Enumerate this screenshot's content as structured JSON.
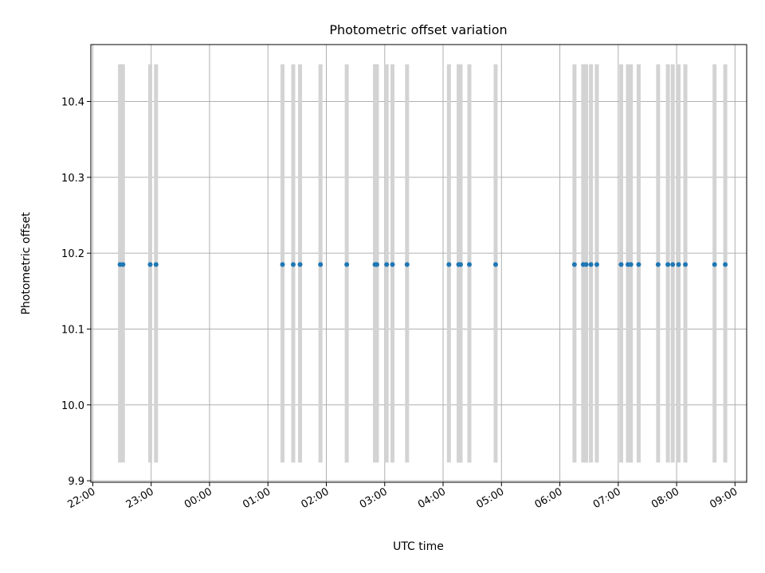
{
  "chart_data": {
    "type": "scatter",
    "title": "Photometric offset variation",
    "xlabel": "UTC time",
    "ylabel": "Photometric offset",
    "x_is_time_of_day": true,
    "xlim": [
      "21:58",
      "09:12"
    ],
    "ylim": [
      9.898,
      10.475
    ],
    "x_ticks": [
      "22:00",
      "23:00",
      "00:00",
      "01:00",
      "02:00",
      "03:00",
      "04:00",
      "05:00",
      "06:00",
      "07:00",
      "08:00",
      "09:00"
    ],
    "x_tick_values": [
      "22:00",
      "23:00",
      "00:00",
      "01:00",
      "02:00",
      "03:00",
      "04:00",
      "05:00",
      "06:00",
      "07:00",
      "08:00",
      "09:00"
    ],
    "y_ticks": [
      "9.9",
      "10.0",
      "10.1",
      "10.2",
      "10.3",
      "10.4"
    ],
    "y_tick_values": [
      9.9,
      10.0,
      10.1,
      10.2,
      10.3,
      10.4
    ],
    "grid": true,
    "colors": {
      "points": "#1f77b4",
      "vlines": "#d3d3d3",
      "grid": "#b0b0b0"
    },
    "vline_range": [
      9.924,
      10.449
    ],
    "series": [
      {
        "values": [
          {
            "x": "22:28",
            "y": 10.185
          },
          {
            "x": "22:31",
            "y": 10.185
          },
          {
            "x": "22:59",
            "y": 10.185
          },
          {
            "x": "23:05",
            "y": 10.185
          },
          {
            "x": "01:15",
            "y": 10.185
          },
          {
            "x": "01:26",
            "y": 10.185
          },
          {
            "x": "01:33",
            "y": 10.185
          },
          {
            "x": "01:54",
            "y": 10.185
          },
          {
            "x": "02:21",
            "y": 10.185
          },
          {
            "x": "02:50",
            "y": 10.185
          },
          {
            "x": "02:52",
            "y": 10.185
          },
          {
            "x": "03:02",
            "y": 10.185
          },
          {
            "x": "03:08",
            "y": 10.185
          },
          {
            "x": "03:23",
            "y": 10.185
          },
          {
            "x": "04:06",
            "y": 10.185
          },
          {
            "x": "04:16",
            "y": 10.185
          },
          {
            "x": "04:18",
            "y": 10.185
          },
          {
            "x": "04:27",
            "y": 10.185
          },
          {
            "x": "04:54",
            "y": 10.185
          },
          {
            "x": "06:15",
            "y": 10.185
          },
          {
            "x": "06:24",
            "y": 10.185
          },
          {
            "x": "06:27",
            "y": 10.185
          },
          {
            "x": "06:32",
            "y": 10.185
          },
          {
            "x": "06:38",
            "y": 10.185
          },
          {
            "x": "07:03",
            "y": 10.185
          },
          {
            "x": "07:10",
            "y": 10.185
          },
          {
            "x": "07:13",
            "y": 10.185
          },
          {
            "x": "07:21",
            "y": 10.185
          },
          {
            "x": "07:41",
            "y": 10.185
          },
          {
            "x": "07:51",
            "y": 10.185
          },
          {
            "x": "07:56",
            "y": 10.185
          },
          {
            "x": "08:02",
            "y": 10.185
          },
          {
            "x": "08:09",
            "y": 10.185
          },
          {
            "x": "08:39",
            "y": 10.185
          },
          {
            "x": "08:50",
            "y": 10.185
          }
        ]
      }
    ]
  }
}
